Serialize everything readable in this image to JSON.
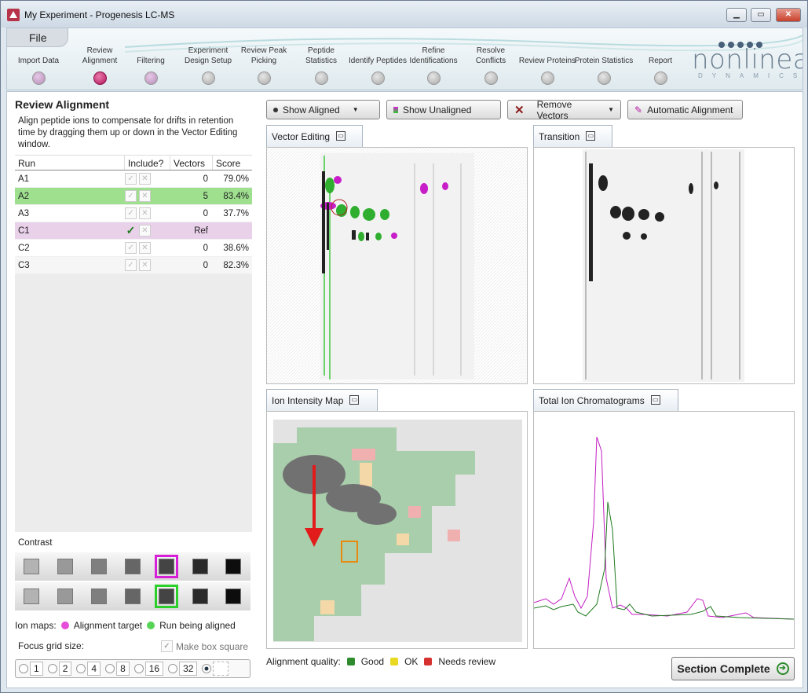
{
  "window": {
    "title": "My Experiment - Progenesis LC-MS"
  },
  "menu": {
    "file": "File"
  },
  "workflow": [
    {
      "label": "Import Data",
      "state": "visited"
    },
    {
      "label": "Review Alignment",
      "state": "current"
    },
    {
      "label": "Filtering",
      "state": "visited"
    },
    {
      "label": "Experiment Design Setup",
      "state": "pending"
    },
    {
      "label": "Review Peak Picking",
      "state": "pending"
    },
    {
      "label": "Peptide Statistics",
      "state": "pending"
    },
    {
      "label": "Identify Peptides",
      "state": "pending"
    },
    {
      "label": "Refine Identifications",
      "state": "pending"
    },
    {
      "label": "Resolve Conflicts",
      "state": "pending"
    },
    {
      "label": "Review Proteins",
      "state": "pending"
    },
    {
      "label": "Protein Statistics",
      "state": "pending"
    },
    {
      "label": "Report",
      "state": "pending"
    }
  ],
  "brand": {
    "name": "nonlinear",
    "sub": "DYNAMICS"
  },
  "left": {
    "title": "Review Alignment",
    "description": "Align peptide ions to compensate for drifts in retention time by dragging them up or down in the Vector Editing window.",
    "columns": [
      "Run",
      "Include?",
      "Vectors",
      "Score"
    ],
    "rows": [
      {
        "run": "A1",
        "vectors": "0",
        "score": "79.0%",
        "style": ""
      },
      {
        "run": "A2",
        "vectors": "5",
        "score": "83.4%",
        "style": "sel"
      },
      {
        "run": "A3",
        "vectors": "0",
        "score": "37.7%",
        "style": ""
      },
      {
        "run": "C1",
        "vectors": "Ref",
        "score": "",
        "style": "ref"
      },
      {
        "run": "C2",
        "vectors": "0",
        "score": "38.6%",
        "style": ""
      },
      {
        "run": "C3",
        "vectors": "0",
        "score": "82.3%",
        "style": "alt"
      }
    ],
    "contrast_label": "Contrast",
    "ion_maps_label": "Ion maps:",
    "alignment_target": "Alignment target",
    "run_being_aligned": "Run being aligned",
    "focus_grid_label": "Focus grid size:",
    "make_box_square": "Make box square",
    "grid_sizes": [
      "1",
      "2",
      "4",
      "8",
      "16",
      "32"
    ]
  },
  "toolbar": {
    "show_aligned": "Show Aligned",
    "show_unaligned": "Show Unaligned",
    "remove_vectors": "Remove Vectors",
    "automatic_alignment": "Automatic Alignment"
  },
  "panels": {
    "vector_editing": "Vector Editing",
    "transition": "Transition",
    "ion_intensity_map": "Ion Intensity Map",
    "total_ion_chromatograms": "Total Ion Chromatograms"
  },
  "legend": {
    "label": "Alignment quality:",
    "good": "Good",
    "ok": "OK",
    "needs_review": "Needs review",
    "colors": {
      "good": "#2d8a2d",
      "ok": "#e8d820",
      "needs_review": "#d63030"
    }
  },
  "section_complete": "Section Complete"
}
